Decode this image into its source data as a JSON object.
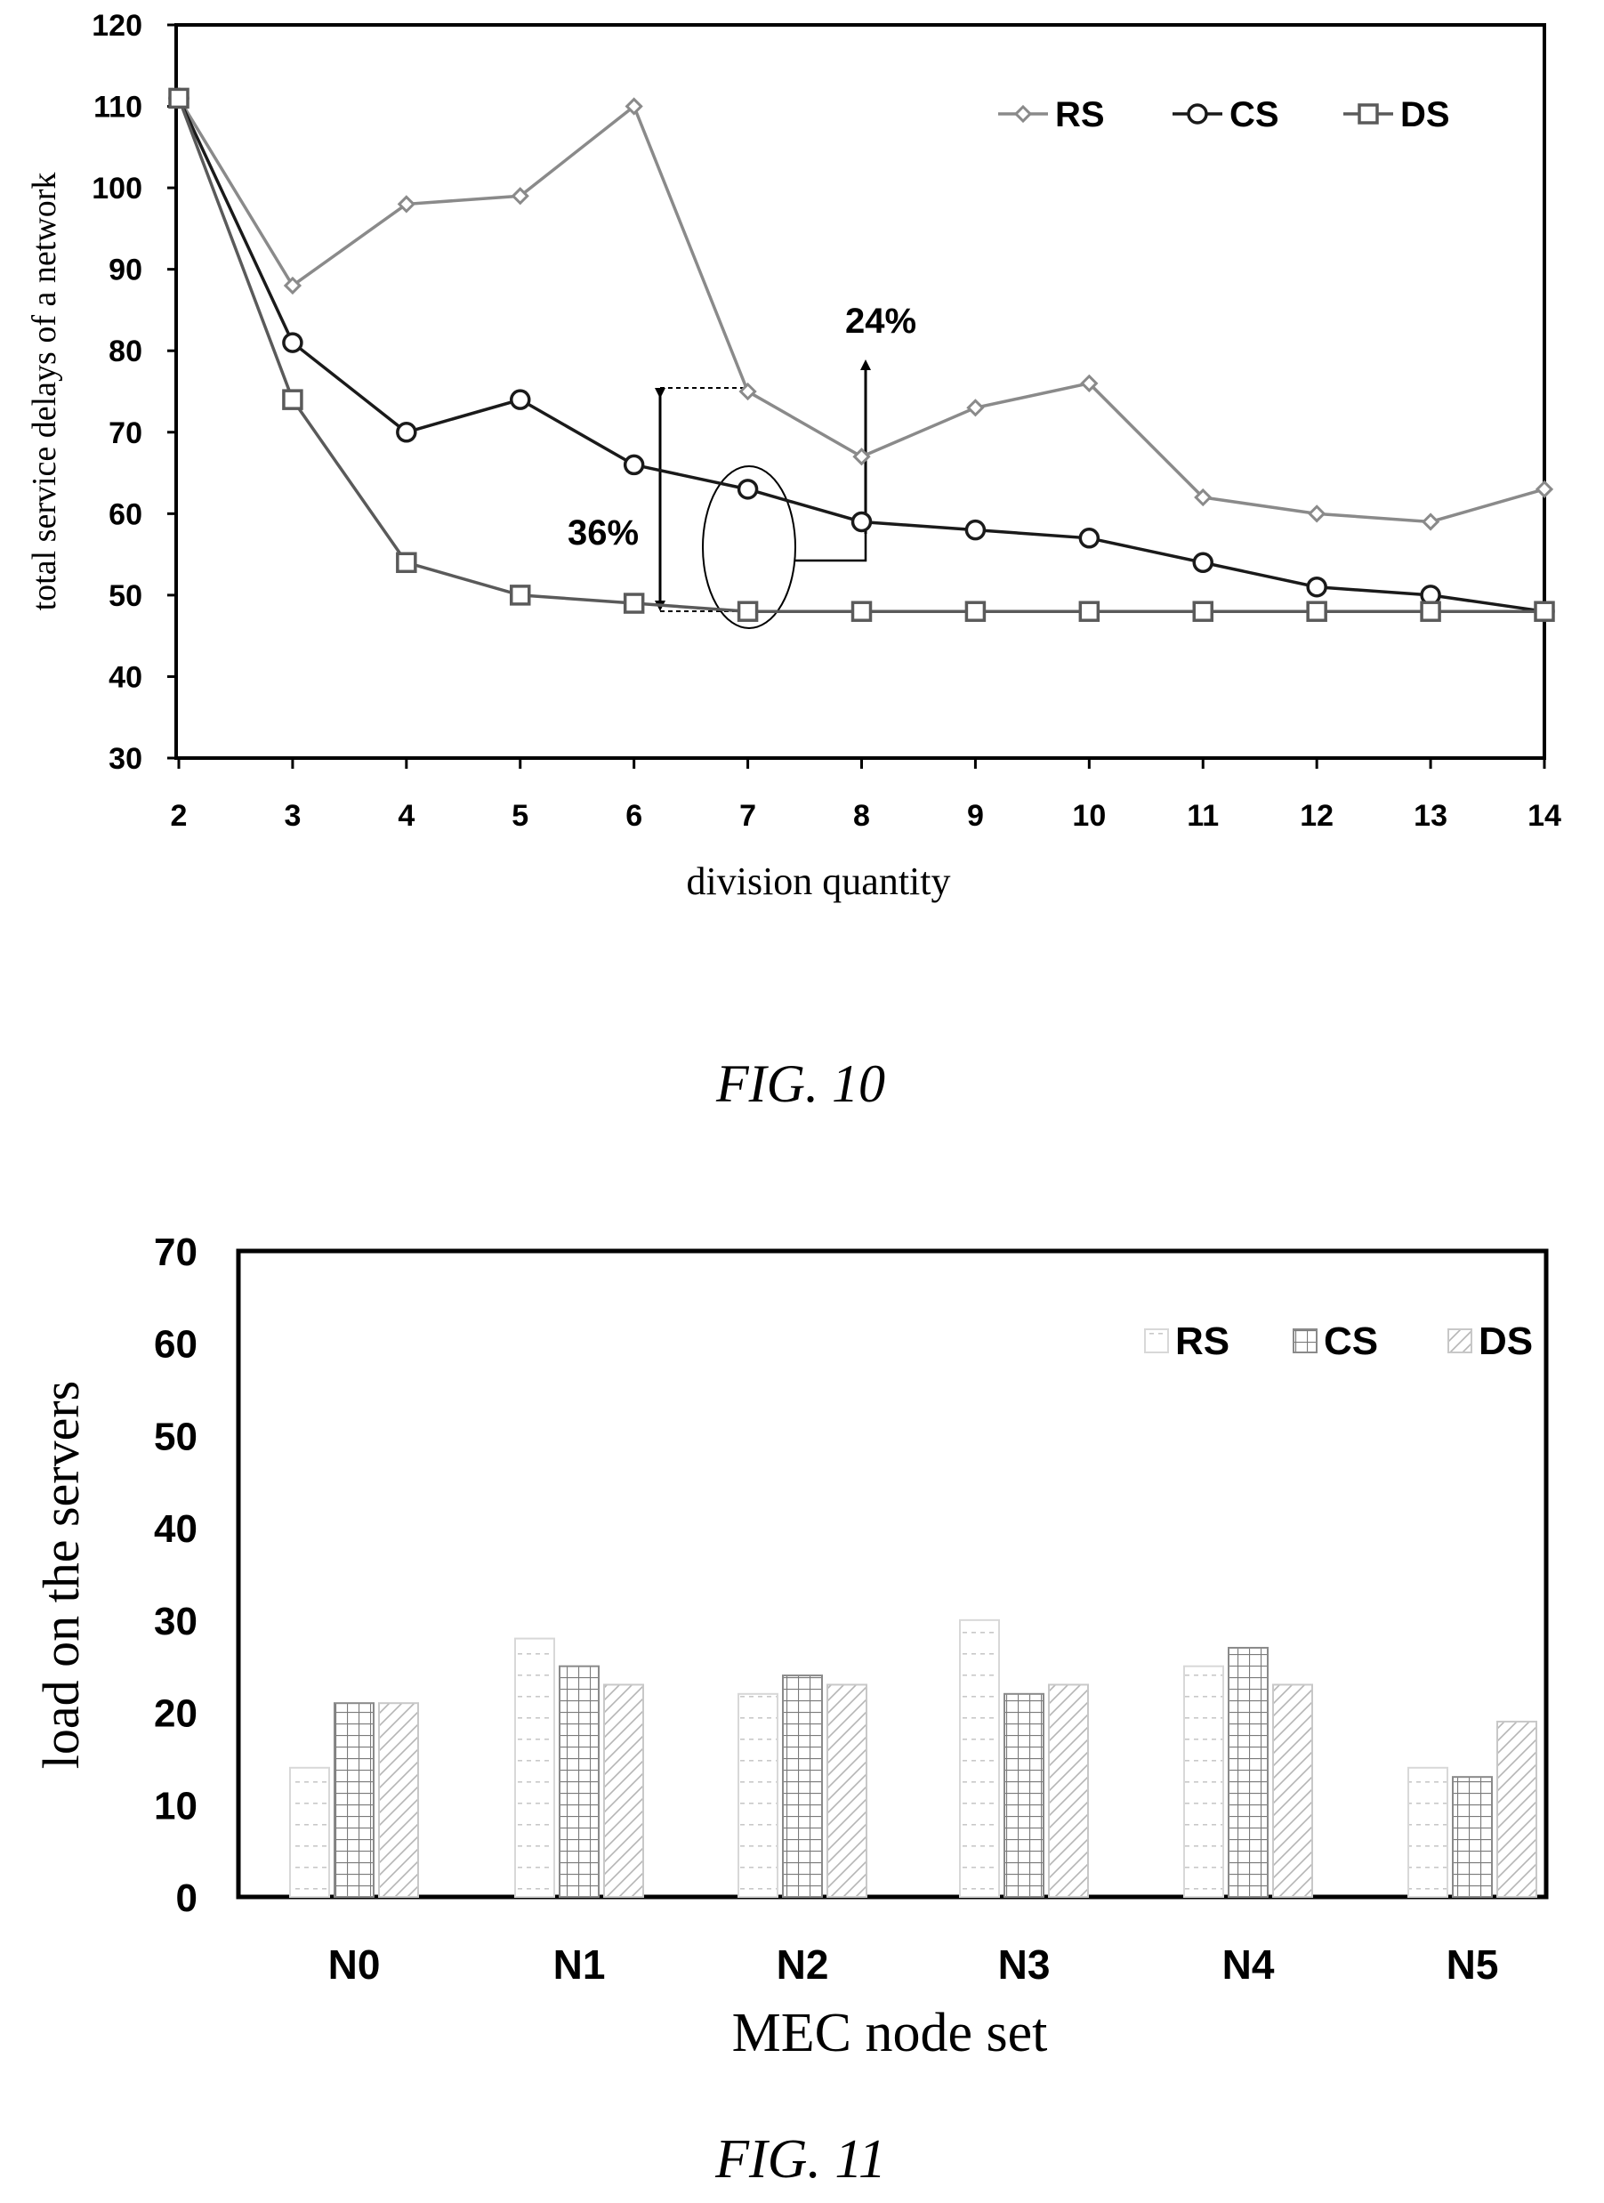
{
  "figure10": {
    "caption": "FIG. 10",
    "chart_data": {
      "type": "line",
      "title": "",
      "xlabel": "division quantity",
      "ylabel": "total service delays of a network",
      "x": [
        2,
        3,
        4,
        5,
        6,
        7,
        8,
        9,
        10,
        11,
        12,
        13,
        14
      ],
      "xlim": [
        2,
        14
      ],
      "ylim": [
        30,
        120
      ],
      "yticks": [
        30,
        40,
        50,
        60,
        70,
        80,
        90,
        100,
        110,
        120
      ],
      "grid": false,
      "legend_position": "top-right",
      "series": [
        {
          "name": "RS",
          "marker": "diamond",
          "color": "#8a8a8a",
          "values": [
            111,
            88,
            98,
            99,
            110,
            75,
            67,
            73,
            76,
            62,
            60,
            59,
            63
          ]
        },
        {
          "name": "CS",
          "marker": "circle",
          "color": "#1a1a1a",
          "values": [
            111,
            81,
            70,
            74,
            66,
            63,
            59,
            58,
            57,
            54,
            51,
            50,
            48
          ]
        },
        {
          "name": "DS",
          "marker": "square",
          "color": "#5a5a5a",
          "values": [
            111,
            74,
            54,
            50,
            49,
            48,
            48,
            48,
            48,
            48,
            48,
            48,
            48
          ]
        }
      ],
      "annotations": [
        {
          "text": "24%"
        },
        {
          "text": "36%"
        }
      ]
    }
  },
  "figure11": {
    "caption": "FIG. 11",
    "chart_data": {
      "type": "bar",
      "title": "",
      "xlabel": "MEC node set",
      "ylabel": "load on the servers",
      "categories": [
        "N0",
        "N1",
        "N2",
        "N3",
        "N4",
        "N5"
      ],
      "ylim": [
        0,
        70
      ],
      "yticks": [
        0,
        10,
        20,
        30,
        40,
        50,
        60,
        70
      ],
      "grid": false,
      "legend_position": "top-right",
      "series": [
        {
          "name": "RS",
          "pattern": "dotted",
          "values": [
            14,
            28,
            22,
            30,
            25,
            14
          ]
        },
        {
          "name": "CS",
          "pattern": "grid",
          "values": [
            21,
            25,
            24,
            22,
            27,
            13
          ]
        },
        {
          "name": "DS",
          "pattern": "diagonal",
          "values": [
            21,
            23,
            23,
            23,
            23,
            19
          ]
        }
      ]
    }
  }
}
